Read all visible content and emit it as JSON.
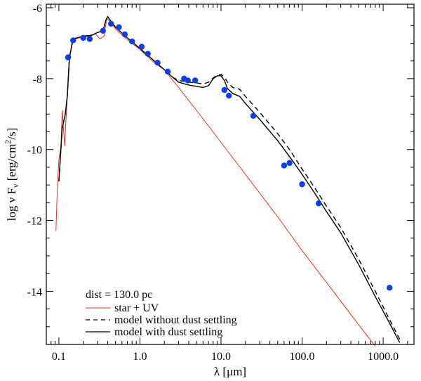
{
  "chart_data": {
    "type": "line",
    "x_scale": "log",
    "xlim": [
      0.07,
      2400
    ],
    "ylim": [
      -15.5,
      -5.9
    ],
    "xlabel": "λ [μm]",
    "ylabel_parts": {
      "prefix": "log ν F",
      "sub": "ν",
      "unit_a": " [erg/cm",
      "sup": "2",
      "unit_b": "/s]"
    },
    "x_ticks": [
      {
        "value": 0.1,
        "label": "0.1"
      },
      {
        "value": 1.0,
        "label": "1.0"
      },
      {
        "value": 10.0,
        "label": "10.0"
      },
      {
        "value": 100.0,
        "label": "100.0"
      },
      {
        "value": 1000.0,
        "label": "1000.0"
      }
    ],
    "y_ticks": [
      {
        "value": -6,
        "label": "-6"
      },
      {
        "value": -8,
        "label": "-8"
      },
      {
        "value": -10,
        "label": "-10"
      },
      {
        "value": -12,
        "label": "-12"
      },
      {
        "value": -14,
        "label": "-14"
      }
    ],
    "legend": {
      "placement": "bottom-left",
      "header": "dist = 130.0 pc",
      "entries": [
        {
          "label": "star + UV",
          "series": "star_uv"
        },
        {
          "label": "model without dust settling",
          "series": "no_settling"
        },
        {
          "label": "model with dust settling",
          "series": "with_settling"
        }
      ]
    },
    "series": [
      {
        "id": "star_uv",
        "name": "star + UV",
        "color": "#e8321e",
        "dash": "solid",
        "points": [
          [
            0.092,
            -12.3
          ],
          [
            0.096,
            -11.0
          ],
          [
            0.1,
            -10.3
          ],
          [
            0.106,
            -9.9
          ],
          [
            0.11,
            -8.9
          ],
          [
            0.114,
            -9.4
          ],
          [
            0.118,
            -9.9
          ],
          [
            0.122,
            -9.2
          ],
          [
            0.128,
            -8.4
          ],
          [
            0.135,
            -7.5
          ],
          [
            0.145,
            -6.95
          ],
          [
            0.16,
            -6.88
          ],
          [
            0.2,
            -6.82
          ],
          [
            0.25,
            -6.8
          ],
          [
            0.28,
            -6.72
          ],
          [
            0.32,
            -6.88
          ],
          [
            0.36,
            -6.8
          ],
          [
            0.39,
            -6.3
          ],
          [
            0.43,
            -6.38
          ],
          [
            0.5,
            -6.6
          ],
          [
            0.7,
            -6.9
          ],
          [
            1.0,
            -7.18
          ],
          [
            1.5,
            -7.55
          ],
          [
            2.0,
            -7.75
          ],
          [
            3.0,
            -8.25
          ],
          [
            5.0,
            -8.9
          ],
          [
            10.0,
            -9.8
          ],
          [
            20.0,
            -10.7
          ],
          [
            50.0,
            -11.9
          ],
          [
            100.0,
            -12.85
          ],
          [
            200.0,
            -13.75
          ],
          [
            500.0,
            -14.95
          ],
          [
            800.0,
            -15.55
          ]
        ]
      },
      {
        "id": "no_settling",
        "name": "model without dust settling",
        "color": "#000000",
        "dash": "dashed",
        "points": [
          [
            0.1,
            -10.9
          ],
          [
            0.11,
            -9.4
          ],
          [
            0.12,
            -9.0
          ],
          [
            0.127,
            -8.5
          ],
          [
            0.135,
            -7.4
          ],
          [
            0.15,
            -6.88
          ],
          [
            0.2,
            -6.8
          ],
          [
            0.25,
            -6.78
          ],
          [
            0.3,
            -6.7
          ],
          [
            0.35,
            -6.65
          ],
          [
            0.38,
            -6.35
          ],
          [
            0.4,
            -6.25
          ],
          [
            0.43,
            -6.35
          ],
          [
            0.5,
            -6.55
          ],
          [
            0.7,
            -6.85
          ],
          [
            1.0,
            -7.15
          ],
          [
            1.5,
            -7.5
          ],
          [
            2.0,
            -7.75
          ],
          [
            2.5,
            -7.95
          ],
          [
            3.0,
            -8.05
          ],
          [
            4.0,
            -8.1
          ],
          [
            5.0,
            -8.12
          ],
          [
            6.0,
            -8.15
          ],
          [
            7.0,
            -8.1
          ],
          [
            8.0,
            -7.98
          ],
          [
            9.0,
            -7.9
          ],
          [
            10.0,
            -7.88
          ],
          [
            11.0,
            -7.95
          ],
          [
            12.0,
            -8.1
          ],
          [
            14.0,
            -8.25
          ],
          [
            17.0,
            -8.3
          ],
          [
            20.0,
            -8.5
          ],
          [
            30.0,
            -8.95
          ],
          [
            50.0,
            -9.55
          ],
          [
            70.0,
            -10.0
          ],
          [
            100.0,
            -10.55
          ],
          [
            150.0,
            -11.15
          ],
          [
            200.0,
            -11.6
          ],
          [
            300.0,
            -12.2
          ],
          [
            500.0,
            -13.1
          ],
          [
            800.0,
            -14.0
          ],
          [
            1200.0,
            -14.8
          ],
          [
            1600.0,
            -15.35
          ]
        ]
      },
      {
        "id": "with_settling",
        "name": "model with dust settling",
        "color": "#000000",
        "dash": "solid",
        "points": [
          [
            0.1,
            -10.9
          ],
          [
            0.11,
            -9.4
          ],
          [
            0.12,
            -9.0
          ],
          [
            0.127,
            -8.5
          ],
          [
            0.135,
            -7.4
          ],
          [
            0.15,
            -6.88
          ],
          [
            0.2,
            -6.8
          ],
          [
            0.25,
            -6.78
          ],
          [
            0.3,
            -6.7
          ],
          [
            0.35,
            -6.65
          ],
          [
            0.38,
            -6.35
          ],
          [
            0.4,
            -6.25
          ],
          [
            0.43,
            -6.35
          ],
          [
            0.5,
            -6.55
          ],
          [
            0.7,
            -6.85
          ],
          [
            1.0,
            -7.15
          ],
          [
            1.5,
            -7.5
          ],
          [
            2.0,
            -7.75
          ],
          [
            2.5,
            -7.95
          ],
          [
            3.0,
            -8.1
          ],
          [
            4.0,
            -8.18
          ],
          [
            5.0,
            -8.22
          ],
          [
            6.0,
            -8.25
          ],
          [
            7.0,
            -8.2
          ],
          [
            8.0,
            -8.0
          ],
          [
            9.0,
            -7.92
          ],
          [
            10.0,
            -7.92
          ],
          [
            11.0,
            -8.05
          ],
          [
            12.0,
            -8.28
          ],
          [
            14.0,
            -8.42
          ],
          [
            17.0,
            -8.5
          ],
          [
            20.0,
            -8.7
          ],
          [
            30.0,
            -9.15
          ],
          [
            50.0,
            -9.75
          ],
          [
            70.0,
            -10.2
          ],
          [
            100.0,
            -10.7
          ],
          [
            150.0,
            -11.3
          ],
          [
            200.0,
            -11.75
          ],
          [
            300.0,
            -12.35
          ],
          [
            500.0,
            -13.25
          ],
          [
            800.0,
            -14.15
          ],
          [
            1200.0,
            -14.9
          ],
          [
            1600.0,
            -15.45
          ]
        ]
      },
      {
        "id": "observations",
        "name": "observations",
        "color": "#0a3cf0",
        "kind": "scatter",
        "points": [
          [
            0.13,
            -7.4
          ],
          [
            0.15,
            -6.92
          ],
          [
            0.2,
            -6.85
          ],
          [
            0.24,
            -6.88
          ],
          [
            0.35,
            -6.65
          ],
          [
            0.44,
            -6.45
          ],
          [
            0.55,
            -6.55
          ],
          [
            0.65,
            -6.75
          ],
          [
            0.8,
            -6.95
          ],
          [
            1.05,
            -7.1
          ],
          [
            1.25,
            -7.3
          ],
          [
            1.65,
            -7.55
          ],
          [
            2.2,
            -7.8
          ],
          [
            3.5,
            -8.0
          ],
          [
            3.9,
            -8.05
          ],
          [
            4.8,
            -8.05
          ],
          [
            11.0,
            -8.32
          ],
          [
            12.5,
            -8.48
          ],
          [
            25.0,
            -9.05
          ],
          [
            60.0,
            -10.45
          ],
          [
            70.0,
            -10.38
          ],
          [
            100.0,
            -10.98
          ],
          [
            160.0,
            -11.52
          ],
          [
            1200.0,
            -13.9
          ]
        ]
      }
    ]
  }
}
